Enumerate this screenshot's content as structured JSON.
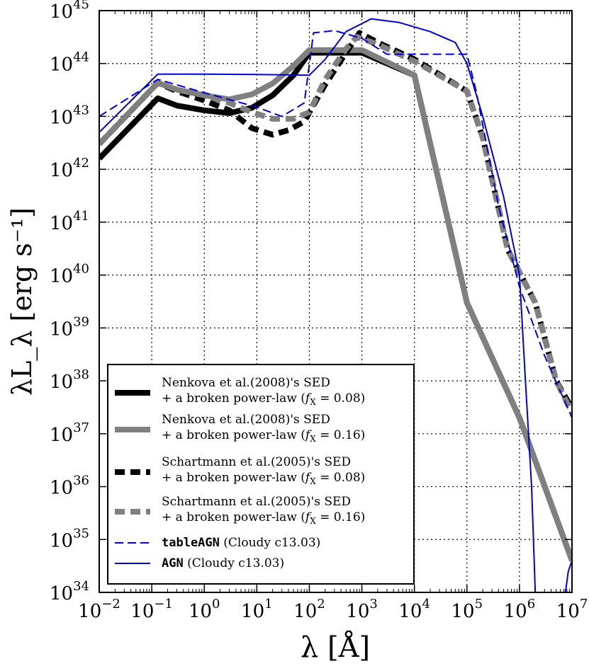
{
  "chart_data": {
    "type": "line",
    "title": "",
    "xlabel": "λ [Å]",
    "ylabel": "λL_λ [erg s⁻¹]",
    "xscale": "log",
    "yscale": "log",
    "xlim": [
      0.01,
      10000000
    ],
    "ylim": [
      1e+34,
      1e+45
    ],
    "grid": true,
    "legend_position": "lower-left",
    "x_ticks": [
      {
        "base": "10",
        "exp": "−2",
        "value": 0.01
      },
      {
        "base": "10",
        "exp": "−1",
        "value": 0.1
      },
      {
        "base": "10",
        "exp": "0",
        "value": 1
      },
      {
        "base": "10",
        "exp": "1",
        "value": 10
      },
      {
        "base": "10",
        "exp": "2",
        "value": 100
      },
      {
        "base": "10",
        "exp": "3",
        "value": 1000
      },
      {
        "base": "10",
        "exp": "4",
        "value": 10000
      },
      {
        "base": "10",
        "exp": "5",
        "value": 100000
      },
      {
        "base": "10",
        "exp": "6",
        "value": 1000000
      },
      {
        "base": "10",
        "exp": "7",
        "value": 10000000
      }
    ],
    "y_ticks": [
      {
        "base": "10",
        "exp": "34",
        "value": 1e+34
      },
      {
        "base": "10",
        "exp": "35",
        "value": 1e+35
      },
      {
        "base": "10",
        "exp": "36",
        "value": 1e+36
      },
      {
        "base": "10",
        "exp": "37",
        "value": 1e+37
      },
      {
        "base": "10",
        "exp": "38",
        "value": 1e+38
      },
      {
        "base": "10",
        "exp": "39",
        "value": 1e+39
      },
      {
        "base": "10",
        "exp": "40",
        "value": 1e+40
      },
      {
        "base": "10",
        "exp": "41",
        "value": 1e+41
      },
      {
        "base": "10",
        "exp": "42",
        "value": 1e+42
      },
      {
        "base": "10",
        "exp": "43",
        "value": 1e+43
      },
      {
        "base": "10",
        "exp": "44",
        "value": 1e+44
      },
      {
        "base": "10",
        "exp": "45",
        "value": 1e+45
      }
    ],
    "series": [
      {
        "name": "Nenkova et al.(2008)'s SED + a broken power-law (f_X = 0.08)",
        "legend_lines": [
          "Nenkova et al.(2008)'s SED",
          "+ a broken power-law (",
          "f",
          "X",
          " = 0.08)"
        ],
        "color": "#000000",
        "style": "solid",
        "width": 8,
        "points": [
          [
            0.01,
            1.6e+42
          ],
          [
            0.13,
            2.2e+43
          ],
          [
            0.3,
            1.6e+43
          ],
          [
            1,
            1.3e+43
          ],
          [
            3,
            1.15e+43
          ],
          [
            8,
            1.45e+43
          ],
          [
            20,
            2.5e+43
          ],
          [
            50,
            6e+43
          ],
          [
            100,
            1.6e+44
          ],
          [
            1000,
            1.6e+44
          ],
          [
            10000,
            6e+43
          ],
          [
            100000,
            3e+39
          ],
          [
            1000000,
            2e+37
          ],
          [
            10000000,
            4e+34
          ]
        ]
      },
      {
        "name": "Nenkova et al.(2008)'s SED + a broken power-law (f_X = 0.16)",
        "legend_lines": [
          "Nenkova et al.(2008)'s SED",
          "+ a broken power-law (",
          "f",
          "X",
          " = 0.16)"
        ],
        "color": "#808080",
        "style": "solid",
        "width": 8,
        "points": [
          [
            0.01,
            3e+42
          ],
          [
            0.13,
            4.3e+43
          ],
          [
            0.3,
            3.2e+43
          ],
          [
            1,
            2.5e+43
          ],
          [
            3,
            2.1e+43
          ],
          [
            8,
            2.6e+43
          ],
          [
            20,
            4.2e+43
          ],
          [
            50,
            9e+43
          ],
          [
            100,
            1.8e+44
          ],
          [
            1000,
            1.8e+44
          ],
          [
            10000,
            6e+43
          ],
          [
            100000,
            3e+39
          ],
          [
            1000000,
            2e+37
          ],
          [
            10000000,
            4e+34
          ]
        ]
      },
      {
        "name": "Schartmann et al.(2005)'s SED + a broken power-law (f_X = 0.08)",
        "legend_lines": [
          "Schartmann et al.(2005)'s SED",
          "+ a broken power-law (",
          "f",
          "X",
          " = 0.08)"
        ],
        "color": "#000000",
        "style": "dashed",
        "width": 8,
        "points": [
          [
            0.01,
            3e+42
          ],
          [
            0.13,
            4.3e+43
          ],
          [
            0.3,
            3e+43
          ],
          [
            1,
            2e+43
          ],
          [
            3,
            1.3e+43
          ],
          [
            8,
            6e+42
          ],
          [
            20,
            4.5e+42
          ],
          [
            40,
            5.5e+42
          ],
          [
            80,
            8e+42
          ],
          [
            200,
            4e+43
          ],
          [
            500,
            1.6e+44
          ],
          [
            900,
            3.8e+44
          ],
          [
            2000,
            2.5e+44
          ],
          [
            10000,
            1.2e+44
          ],
          [
            100000,
            3e+43
          ],
          [
            200000,
            4e+42
          ],
          [
            600000,
            3e+40
          ],
          [
            2000000,
            3e+39
          ],
          [
            5000000,
            1e+38
          ],
          [
            10000000,
            3e+37
          ]
        ]
      },
      {
        "name": "Schartmann et al.(2005)'s SED + a broken power-law (f_X = 0.16)",
        "legend_lines": [
          "Schartmann et al.(2005)'s SED",
          "+ a broken power-law (",
          "f",
          "X",
          " = 0.16)"
        ],
        "color": "#808080",
        "style": "dashed",
        "width": 8,
        "points": [
          [
            0.01,
            3e+42
          ],
          [
            0.13,
            4.3e+43
          ],
          [
            0.3,
            3.2e+43
          ],
          [
            1,
            2.5e+43
          ],
          [
            3,
            1.8e+43
          ],
          [
            8,
            1.2e+43
          ],
          [
            20,
            9e+42
          ],
          [
            50,
            9e+42
          ],
          [
            100,
            1.2e+43
          ],
          [
            200,
            5e+43
          ],
          [
            500,
            1.9e+44
          ],
          [
            800,
            3.2e+44
          ],
          [
            2000,
            2.3e+44
          ],
          [
            10000,
            1.1e+44
          ],
          [
            100000,
            3e+43
          ],
          [
            200000,
            4e+42
          ],
          [
            600000,
            3e+40
          ],
          [
            2000000,
            3e+39
          ],
          [
            5000000,
            1e+38
          ],
          [
            10000000,
            2.5e+37
          ]
        ]
      },
      {
        "name": "tableAGN (Cloudy c13.03)",
        "legend_lines": [
          "tableAGN",
          " (Cloudy c13.03)"
        ],
        "color": "#0000dd",
        "style": "dashed-thin",
        "width": 2,
        "points": [
          [
            0.01,
            1e+43
          ],
          [
            0.13,
            5e+43
          ],
          [
            1,
            2.8e+43
          ],
          [
            10,
            1.5e+43
          ],
          [
            30,
            1e+43
          ],
          [
            80,
            1.8e+43
          ],
          [
            120,
            3.8e+44
          ],
          [
            300,
            4.2e+44
          ],
          [
            1000,
            3e+44
          ],
          [
            3000,
            1.5e+44
          ],
          [
            10000,
            1.5e+44
          ],
          [
            100000,
            1.5e+44
          ],
          [
            150000,
            3e+43
          ],
          [
            400000,
            2e+41
          ],
          [
            1000000,
            6e+39
          ],
          [
            3000000,
            3e+38
          ],
          [
            10000000,
            2e+37
          ]
        ]
      },
      {
        "name": "AGN (Cloudy c13.03)",
        "legend_lines": [
          "AGN",
          " (Cloudy c13.03)"
        ],
        "color": "#0000dd",
        "style": "solid-thin",
        "width": 2,
        "points": [
          [
            0.01,
            5e+42
          ],
          [
            0.13,
            6.3e+43
          ],
          [
            1,
            6.3e+43
          ],
          [
            10,
            6.2e+43
          ],
          [
            100,
            6e+43
          ],
          [
            200,
            1.2e+44
          ],
          [
            500,
            4e+44
          ],
          [
            1500,
            7e+44
          ],
          [
            5000,
            6e+44
          ],
          [
            20000,
            4e+44
          ],
          [
            60000,
            2.5e+44
          ],
          [
            100000,
            1e+44
          ],
          [
            200000,
            1e+43
          ],
          [
            500000,
            3e+41
          ],
          [
            1000000,
            1e+40
          ],
          [
            1300000,
            1e+38
          ],
          [
            1700000,
            1e+36
          ],
          [
            2000000,
            1e+34
          ]
        ]
      },
      {
        "name": "AGN tail",
        "legend_lines": [],
        "color": "#0000dd",
        "style": "solid-thin",
        "width": 2,
        "points": [
          [
            7500000,
            1e+34
          ],
          [
            8500000,
            2.5e+34
          ],
          [
            10000000,
            4e+34
          ]
        ]
      }
    ]
  }
}
